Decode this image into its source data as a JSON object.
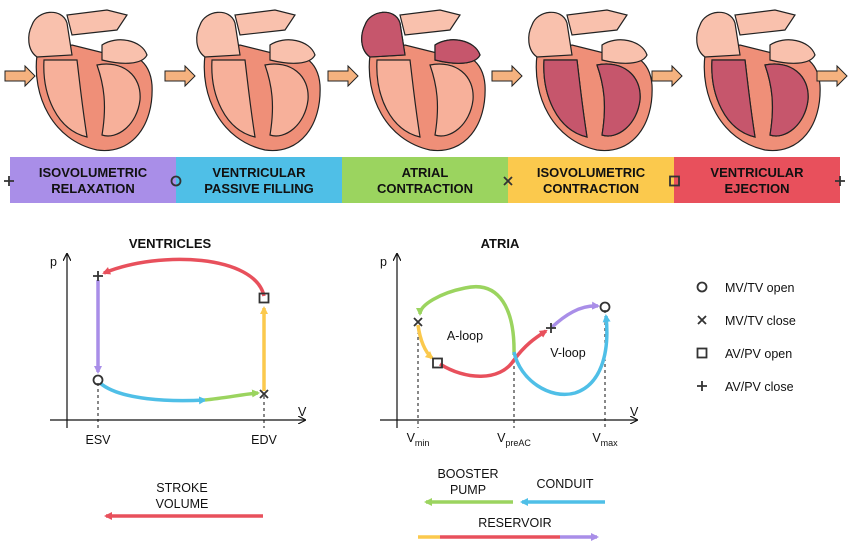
{
  "phases": [
    {
      "lines": [
        "ISOVOLUMETRIC",
        "RELAXATION"
      ],
      "color": "#a98ee8"
    },
    {
      "lines": [
        "VENTRICULAR",
        "PASSIVE FILLING"
      ],
      "color": "#4fbfe7"
    },
    {
      "lines": [
        "ATRIAL",
        "CONTRACTION"
      ],
      "color": "#9bd45f"
    },
    {
      "lines": [
        "ISOVOLUMETRIC",
        "CONTRACTION"
      ],
      "color": "#fbc94d"
    },
    {
      "lines": [
        "VENTRICULAR",
        "EJECTION"
      ],
      "color": "#e8505c"
    }
  ],
  "ventricles": {
    "title": "VENTRICLES",
    "y_label": "p",
    "x_label": "V",
    "esv": "ESV",
    "edv": "EDV"
  },
  "atria": {
    "title": "ATRIA",
    "y_label": "p",
    "x_label": "V",
    "v_min": {
      "base": "V",
      "sub": "min"
    },
    "v_preac": {
      "base": "V",
      "sub": "preAC"
    },
    "v_max": {
      "base": "V",
      "sub": "max"
    },
    "a_loop": "A-loop",
    "v_loop": "V-loop"
  },
  "legend": [
    "MV/TV open",
    "MV/TV close",
    "AV/PV open",
    "AV/PV close"
  ],
  "bottom": {
    "stroke_volume": [
      "STROKE",
      "VOLUME"
    ],
    "booster_pump": [
      "BOOSTER",
      "PUMP"
    ],
    "conduit": "CONDUIT",
    "reservoir": "RESERVOIR"
  }
}
